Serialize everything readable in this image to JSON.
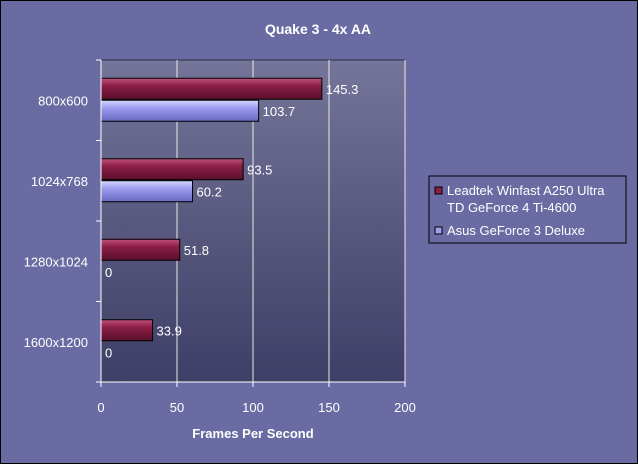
{
  "chart_data": {
    "type": "bar",
    "orientation": "horizontal",
    "title": "Quake 3 - 4x AA",
    "xlabel": "Frames Per Second",
    "ylabel": "",
    "categories": [
      "800x600",
      "1024x768",
      "1280x1024",
      "1600x1200"
    ],
    "xlim": [
      0,
      200
    ],
    "xticks": [
      0,
      50,
      100,
      150,
      200
    ],
    "grid": true,
    "legend_position": "right",
    "series": [
      {
        "name": "Leadtek Winfast A250 Ultra TD GeForce 4 Ti-4600",
        "legend_lines": [
          "Leadtek Winfast A250 Ultra",
          "TD GeForce 4 Ti-4600"
        ],
        "values": [
          145.3,
          93.5,
          51.8,
          33.9
        ],
        "labels": [
          "145.3",
          "93.5",
          "51.8",
          "33.9"
        ],
        "color": "#8c1f47"
      },
      {
        "name": "Asus GeForce 3 Deluxe",
        "legend_lines": [
          "Asus GeForce 3 Deluxe"
        ],
        "values": [
          103.7,
          60.2,
          0,
          0
        ],
        "labels": [
          "103.7",
          "60.2",
          "0",
          "0"
        ],
        "color": "#9e9ef0"
      }
    ],
    "colors": {
      "background": "#6b6ba3",
      "plot_top": "#75759a",
      "plot_bottom": "#3e3e66",
      "text": "#ffffff",
      "grid": "#e8e8e8"
    }
  }
}
